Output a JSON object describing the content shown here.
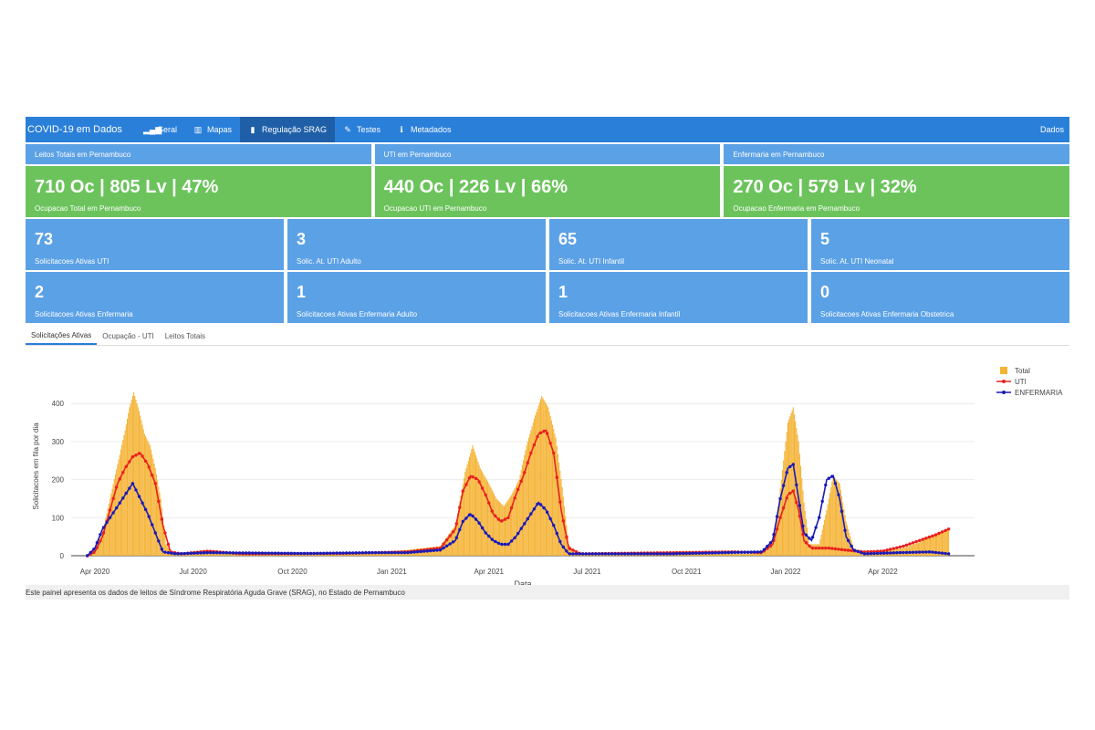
{
  "nav": {
    "brand": "COVID-19 em Dados",
    "items": [
      {
        "label": "Geral",
        "icon": "bar-chart-icon",
        "glyph": "▂▄▆"
      },
      {
        "label": "Mapas",
        "icon": "map-icon",
        "glyph": "▥"
      },
      {
        "label": "Regulação SRAG",
        "icon": "file-icon",
        "glyph": "▮",
        "active": true
      },
      {
        "label": "Testes",
        "icon": "pen-icon",
        "glyph": "✎"
      },
      {
        "label": "Metadados",
        "icon": "info-icon",
        "glyph": "ℹ"
      }
    ],
    "right": "Dados"
  },
  "headers": [
    "Leitos Totais em Pernambuco",
    "UTI em Pernambuco",
    "Enfermaria em Pernambuco"
  ],
  "big_boxes": [
    {
      "value": "710 Oc | 805 Lv | 47%",
      "label": "Ocupacao Total em Pernambuco"
    },
    {
      "value": "440 Oc | 226 Lv | 66%",
      "label": "Ocupacao UTI em Pernambuco"
    },
    {
      "value": "270 Oc | 579 Lv | 32%",
      "label": "Ocupacao Enfermaria em Pernambuco"
    }
  ],
  "small_row1": [
    {
      "value": "73",
      "label": "Solicitacoes Ativas UTI"
    },
    {
      "value": "3",
      "label": "Solic. At. UTI Adulto"
    },
    {
      "value": "65",
      "label": "Solic. At. UTI Infantil"
    },
    {
      "value": "5",
      "label": "Solic. At. UTI Neonatal"
    }
  ],
  "small_row2": [
    {
      "value": "2",
      "label": "Solicitacoes Ativas Enfermaria"
    },
    {
      "value": "1",
      "label": "Solicitacoes Ativas Enfermaria Adulto"
    },
    {
      "value": "1",
      "label": "Solicitacoes Ativas Enfermaria Infantil"
    },
    {
      "value": "0",
      "label": "Solicitacoes Ativas Enfermaria Obstetrica"
    }
  ],
  "tabs": [
    {
      "label": "Solicitações Ativas",
      "active": true
    },
    {
      "label": "Ocupação - UTI"
    },
    {
      "label": "Leitos Totais"
    }
  ],
  "footer": "Este painel apresenta os dados de leitos de Síndrome Respiratória Aguda Grave (SRAG), no Estado de Pernambuco",
  "colors": {
    "total": "#f5b335",
    "uti": "#e8211d",
    "enfermaria": "#1a1ab8",
    "nav": "#2a7fd9",
    "green": "#6cc35c",
    "blue": "#5ba1e6"
  },
  "chart_data": {
    "type": "area",
    "xlabel": "Data",
    "ylabel": "Solicitacoes em fila por dia",
    "ylim": [
      0,
      470
    ],
    "yticks": [
      0,
      100,
      200,
      300,
      400
    ],
    "xlim": [
      "2020-03-10",
      "2022-06-25"
    ],
    "xticks": [
      {
        "date": "2020-04-01",
        "label": "Apr 2020"
      },
      {
        "date": "2020-07-01",
        "label": "Jul 2020"
      },
      {
        "date": "2020-10-01",
        "label": "Oct 2020"
      },
      {
        "date": "2021-01-01",
        "label": "Jan 2021"
      },
      {
        "date": "2021-04-01",
        "label": "Apr 2021"
      },
      {
        "date": "2021-07-01",
        "label": "Jul 2021"
      },
      {
        "date": "2021-10-01",
        "label": "Oct 2021"
      },
      {
        "date": "2022-01-01",
        "label": "Jan 2022"
      },
      {
        "date": "2022-04-01",
        "label": "Apr 2022"
      }
    ],
    "series": [
      {
        "name": "Total",
        "kind": "bar",
        "points": [
          [
            "2020-03-25",
            0
          ],
          [
            "2020-04-01",
            20
          ],
          [
            "2020-04-08",
            60
          ],
          [
            "2020-04-15",
            150
          ],
          [
            "2020-04-22",
            240
          ],
          [
            "2020-04-29",
            330
          ],
          [
            "2020-05-03",
            390
          ],
          [
            "2020-05-07",
            430
          ],
          [
            "2020-05-12",
            380
          ],
          [
            "2020-05-17",
            320
          ],
          [
            "2020-05-22",
            290
          ],
          [
            "2020-05-27",
            230
          ],
          [
            "2020-06-01",
            150
          ],
          [
            "2020-06-06",
            30
          ],
          [
            "2020-06-12",
            5
          ],
          [
            "2020-07-15",
            15
          ],
          [
            "2020-08-01",
            5
          ],
          [
            "2020-12-01",
            5
          ],
          [
            "2021-01-15",
            15
          ],
          [
            "2021-02-15",
            25
          ],
          [
            "2021-03-01",
            80
          ],
          [
            "2021-03-10",
            220
          ],
          [
            "2021-03-17",
            290
          ],
          [
            "2021-03-24",
            230
          ],
          [
            "2021-04-01",
            190
          ],
          [
            "2021-04-08",
            150
          ],
          [
            "2021-04-15",
            130
          ],
          [
            "2021-04-22",
            160
          ],
          [
            "2021-04-29",
            200
          ],
          [
            "2021-05-06",
            290
          ],
          [
            "2021-05-13",
            360
          ],
          [
            "2021-05-20",
            420
          ],
          [
            "2021-05-26",
            390
          ],
          [
            "2021-06-02",
            310
          ],
          [
            "2021-06-08",
            180
          ],
          [
            "2021-06-14",
            30
          ],
          [
            "2021-06-20",
            5
          ],
          [
            "2021-12-01",
            5
          ],
          [
            "2021-12-15",
            15
          ],
          [
            "2021-12-22",
            60
          ],
          [
            "2021-12-28",
            200
          ],
          [
            "2022-01-03",
            350
          ],
          [
            "2022-01-08",
            390
          ],
          [
            "2022-01-13",
            300
          ],
          [
            "2022-01-18",
            140
          ],
          [
            "2022-01-23",
            30
          ],
          [
            "2022-02-01",
            30
          ],
          [
            "2022-02-08",
            120
          ],
          [
            "2022-02-14",
            210
          ],
          [
            "2022-02-20",
            190
          ],
          [
            "2022-02-26",
            90
          ],
          [
            "2022-03-05",
            20
          ],
          [
            "2022-03-15",
            5
          ],
          [
            "2022-04-01",
            10
          ],
          [
            "2022-04-20",
            20
          ],
          [
            "2022-05-05",
            35
          ],
          [
            "2022-05-15",
            50
          ],
          [
            "2022-05-25",
            60
          ],
          [
            "2022-06-01",
            70
          ]
        ]
      },
      {
        "name": "UTI",
        "kind": "line",
        "points": [
          [
            "2020-03-25",
            0
          ],
          [
            "2020-04-01",
            10
          ],
          [
            "2020-04-08",
            50
          ],
          [
            "2020-04-15",
            120
          ],
          [
            "2020-04-22",
            190
          ],
          [
            "2020-04-29",
            230
          ],
          [
            "2020-05-06",
            260
          ],
          [
            "2020-05-13",
            270
          ],
          [
            "2020-05-20",
            240
          ],
          [
            "2020-05-27",
            190
          ],
          [
            "2020-06-03",
            80
          ],
          [
            "2020-06-10",
            10
          ],
          [
            "2020-06-20",
            5
          ],
          [
            "2020-07-15",
            12
          ],
          [
            "2020-08-15",
            5
          ],
          [
            "2020-11-15",
            6
          ],
          [
            "2021-01-15",
            10
          ],
          [
            "2021-02-15",
            20
          ],
          [
            "2021-03-01",
            70
          ],
          [
            "2021-03-08",
            170
          ],
          [
            "2021-03-15",
            210
          ],
          [
            "2021-03-22",
            200
          ],
          [
            "2021-03-29",
            160
          ],
          [
            "2021-04-05",
            110
          ],
          [
            "2021-04-12",
            90
          ],
          [
            "2021-04-19",
            100
          ],
          [
            "2021-04-26",
            160
          ],
          [
            "2021-05-03",
            210
          ],
          [
            "2021-05-10",
            270
          ],
          [
            "2021-05-17",
            320
          ],
          [
            "2021-05-24",
            330
          ],
          [
            "2021-05-31",
            270
          ],
          [
            "2021-06-07",
            120
          ],
          [
            "2021-06-14",
            20
          ],
          [
            "2021-06-25",
            5
          ],
          [
            "2021-11-15",
            10
          ],
          [
            "2021-12-10",
            8
          ],
          [
            "2021-12-20",
            30
          ],
          [
            "2021-12-27",
            100
          ],
          [
            "2022-01-03",
            160
          ],
          [
            "2022-01-08",
            170
          ],
          [
            "2022-01-13",
            120
          ],
          [
            "2022-01-18",
            40
          ],
          [
            "2022-01-25",
            20
          ],
          [
            "2022-02-10",
            20
          ],
          [
            "2022-02-25",
            15
          ],
          [
            "2022-03-15",
            10
          ],
          [
            "2022-04-01",
            12
          ],
          [
            "2022-04-20",
            25
          ],
          [
            "2022-05-05",
            40
          ],
          [
            "2022-05-20",
            55
          ],
          [
            "2022-06-01",
            70
          ]
        ]
      },
      {
        "name": "ENFERMARIA",
        "kind": "line",
        "points": [
          [
            "2020-03-25",
            0
          ],
          [
            "2020-04-01",
            20
          ],
          [
            "2020-04-08",
            70
          ],
          [
            "2020-04-15",
            100
          ],
          [
            "2020-04-22",
            130
          ],
          [
            "2020-04-29",
            160
          ],
          [
            "2020-05-06",
            190
          ],
          [
            "2020-05-13",
            150
          ],
          [
            "2020-05-20",
            110
          ],
          [
            "2020-05-27",
            60
          ],
          [
            "2020-06-03",
            10
          ],
          [
            "2020-06-15",
            5
          ],
          [
            "2020-07-15",
            8
          ],
          [
            "2020-10-15",
            6
          ],
          [
            "2020-12-15",
            8
          ],
          [
            "2021-01-15",
            8
          ],
          [
            "2021-02-15",
            15
          ],
          [
            "2021-03-01",
            40
          ],
          [
            "2021-03-08",
            90
          ],
          [
            "2021-03-15",
            110
          ],
          [
            "2021-03-22",
            90
          ],
          [
            "2021-03-29",
            60
          ],
          [
            "2021-04-05",
            40
          ],
          [
            "2021-04-12",
            30
          ],
          [
            "2021-04-19",
            30
          ],
          [
            "2021-04-26",
            50
          ],
          [
            "2021-05-03",
            80
          ],
          [
            "2021-05-10",
            110
          ],
          [
            "2021-05-17",
            140
          ],
          [
            "2021-05-24",
            120
          ],
          [
            "2021-05-31",
            80
          ],
          [
            "2021-06-07",
            30
          ],
          [
            "2021-06-14",
            5
          ],
          [
            "2021-09-15",
            5
          ],
          [
            "2021-12-10",
            10
          ],
          [
            "2021-12-20",
            40
          ],
          [
            "2021-12-27",
            150
          ],
          [
            "2022-01-03",
            230
          ],
          [
            "2022-01-08",
            240
          ],
          [
            "2022-01-13",
            150
          ],
          [
            "2022-01-18",
            60
          ],
          [
            "2022-01-25",
            40
          ],
          [
            "2022-02-01",
            100
          ],
          [
            "2022-02-08",
            200
          ],
          [
            "2022-02-14",
            210
          ],
          [
            "2022-02-20",
            150
          ],
          [
            "2022-02-26",
            50
          ],
          [
            "2022-03-05",
            15
          ],
          [
            "2022-03-15",
            5
          ],
          [
            "2022-04-15",
            8
          ],
          [
            "2022-05-15",
            10
          ],
          [
            "2022-06-01",
            5
          ]
        ]
      }
    ]
  }
}
